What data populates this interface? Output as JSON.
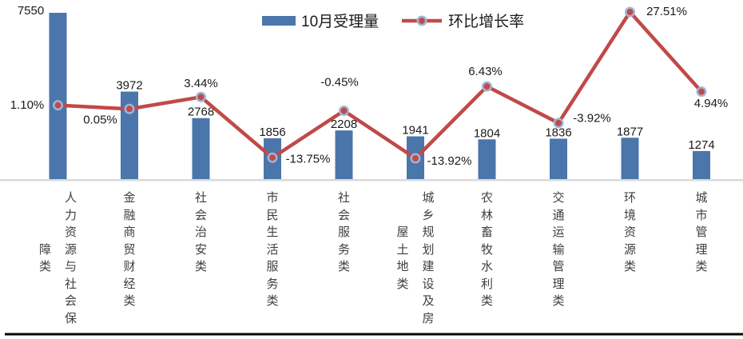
{
  "chart_data": {
    "type": "combo",
    "title": "",
    "xlabel": "",
    "ylabel": "",
    "legend_position": "top-center",
    "grid": false,
    "categories": [
      "人力资源与社会保障类",
      "金融商贸财经类",
      "社会治安类",
      "市民生活服务类",
      "社会服务类",
      "城乡规划建设及房屋土地类",
      "农林畜牧水利类",
      "交通运输管理类",
      "环境资源类",
      "城市管理类"
    ],
    "series": [
      {
        "name": "10月受理量",
        "type": "bar",
        "axis": "primary",
        "values": [
          7550,
          3972,
          2768,
          1856,
          2208,
          1941,
          1804,
          1836,
          1877,
          1274
        ],
        "data_labels": [
          "7550",
          "3972",
          "2768",
          "1856",
          "2208",
          "1941",
          "1804",
          "1836",
          "1877",
          "1274"
        ]
      },
      {
        "name": "环比增长率",
        "type": "line",
        "axis": "secondary",
        "values": [
          1.1,
          0.05,
          3.44,
          -13.75,
          -0.45,
          -13.92,
          6.43,
          -3.92,
          27.51,
          4.94
        ],
        "data_labels": [
          "1.10%",
          "0.05%",
          "3.44%",
          "-13.75%",
          "-0.45%",
          "-13.92%",
          "6.43%",
          "-3.92%",
          "27.51%",
          "4.94%"
        ]
      }
    ],
    "y1lim": [
      0,
      7550
    ],
    "y2lim": [
      -19.8,
      27.3
    ]
  },
  "colors": {
    "bar_fill": "#4A76AC",
    "line_stroke": "#C04A48",
    "marker_fill": "#C04A48",
    "marker_ring": "#9FB5D8",
    "axis_line": "#D9D9D9",
    "bottom_border": "#000000",
    "value_label_text": "#1a1a1a",
    "category_text": "#404040"
  }
}
